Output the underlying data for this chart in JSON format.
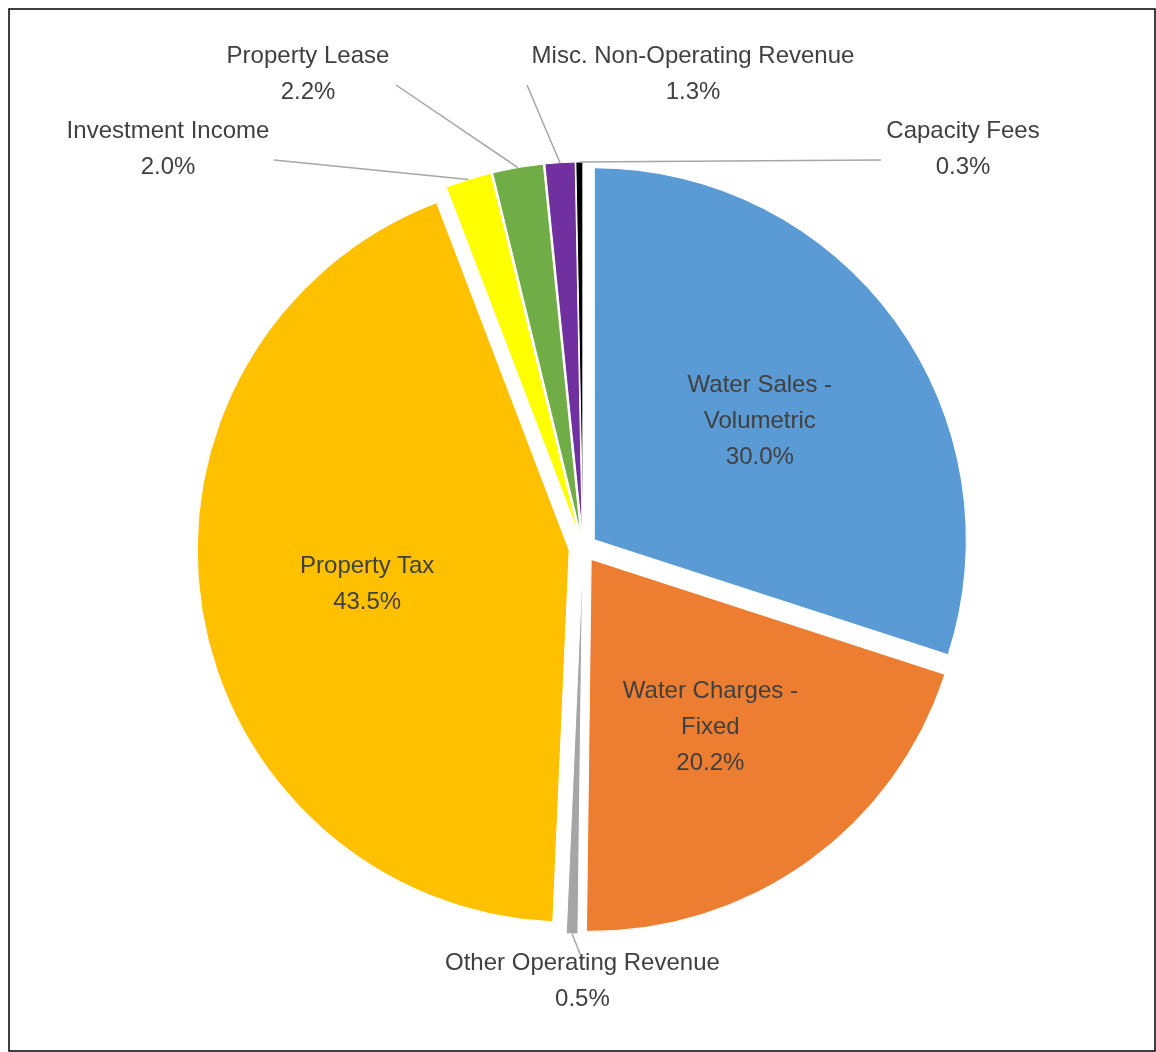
{
  "chart_data": {
    "type": "pie",
    "categories": [
      "Water Sales - Volumetric",
      "Water Charges - Fixed",
      "Other Operating Revenue",
      "Property Tax",
      "Investment Income",
      "Property Lease",
      "Misc. Non-Operating Revenue",
      "Capacity Fees"
    ],
    "values": [
      30.0,
      20.2,
      0.5,
      43.5,
      2.0,
      2.2,
      1.3,
      0.3
    ],
    "colors": [
      "#5b9bd5",
      "#ed7d31",
      "#a5a5a5",
      "#ffc000",
      "#ffff00",
      "#70ad47",
      "#7030a0",
      "#000000"
    ],
    "value_labels": [
      "30.0%",
      "20.2%",
      "0.5%",
      "43.5%",
      "2.0%",
      "2.2%",
      "1.3%",
      "0.3%"
    ]
  }
}
